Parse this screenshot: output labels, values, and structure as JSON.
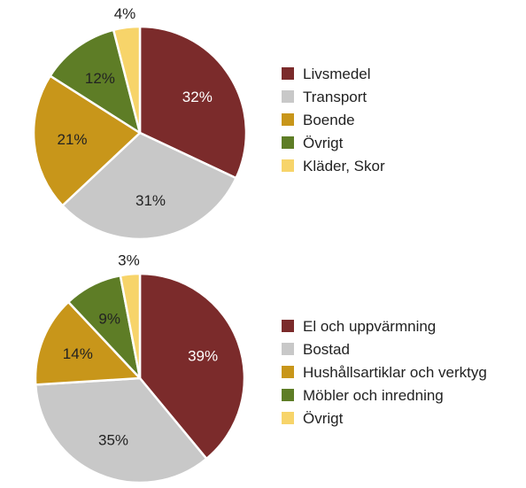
{
  "chart_data": [
    {
      "type": "pie",
      "categories": [
        "Livsmedel",
        "Transport",
        "Boende",
        "Övrigt",
        "Kläder, Skor"
      ],
      "values": [
        32,
        31,
        21,
        12,
        4
      ],
      "labels": [
        "32%",
        "31%",
        "21%",
        "12%",
        "4%"
      ],
      "colors": [
        "#7b2b2b",
        "#c8c8c8",
        "#c8961a",
        "#5e7d26",
        "#f7d46a"
      ],
      "label_colors": [
        "#ffffff",
        "#222222",
        "#222222",
        "#222222",
        "#222222"
      ],
      "legend_position": "right",
      "title": ""
    },
    {
      "type": "pie",
      "categories": [
        "El och uppvärmning",
        "Bostad",
        "Hushållsartiklar och verktyg",
        "Möbler och inredning",
        "Övrigt"
      ],
      "values": [
        39,
        35,
        14,
        9,
        3
      ],
      "labels": [
        "39%",
        "35%",
        "14%",
        "9%",
        "3%"
      ],
      "colors": [
        "#7b2b2b",
        "#c8c8c8",
        "#c8961a",
        "#5e7d26",
        "#f7d46a"
      ],
      "label_colors": [
        "#ffffff",
        "#222222",
        "#222222",
        "#222222",
        "#222222"
      ],
      "legend_position": "right",
      "title": ""
    }
  ]
}
